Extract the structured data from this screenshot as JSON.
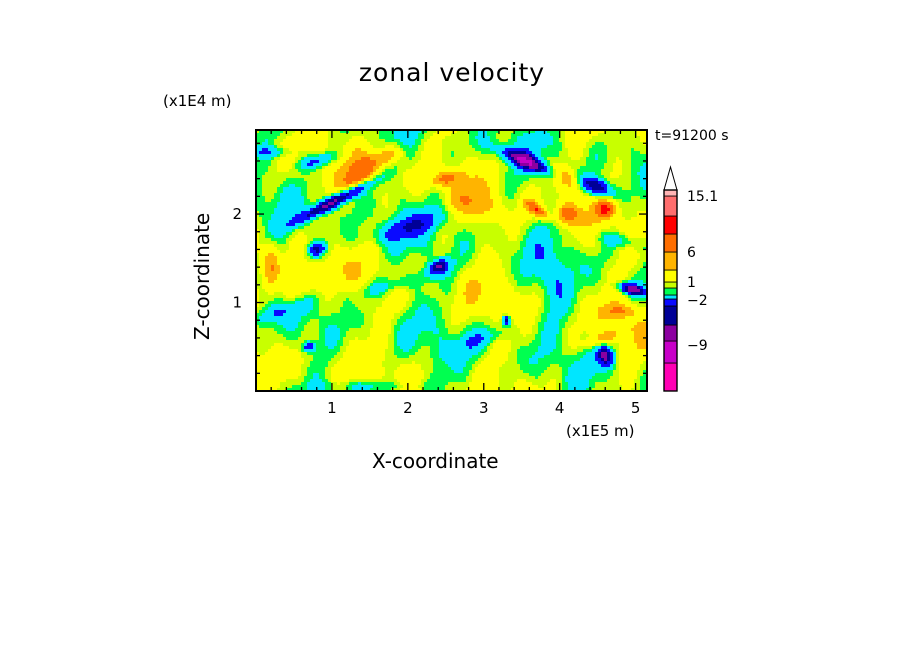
{
  "chart_data": {
    "type": "heatmap",
    "title": "zonal velocity",
    "xlabel": "X-coordinate",
    "ylabel": "Z-coordinate",
    "x_unit": "(x1E5 m)",
    "y_unit": "(x1E4 m)",
    "time_label": "t=91200 s",
    "x_range": [
      0,
      5.15
    ],
    "y_range": [
      0,
      2.95
    ],
    "x_ticks": [
      1,
      2,
      3,
      4,
      5
    ],
    "y_ticks": [
      1,
      2
    ],
    "colorbar": {
      "levels": [
        -14,
        -11.5,
        -9,
        -6,
        -4,
        -2,
        0,
        1,
        2,
        4,
        6,
        9,
        12,
        15.1
      ],
      "labels": [
        "15.1",
        "6",
        "1",
        "−2",
        "−9"
      ],
      "label_values": [
        15.1,
        6,
        1,
        -2,
        -9
      ],
      "colors": [
        "#ff00b4",
        "#c800c8",
        "#8c00a0",
        "#000096",
        "#0a0aff",
        "#00e6ff",
        "#00ff50",
        "#c8ff00",
        "#ffff00",
        "#ffb400",
        "#ff6e00",
        "#ff0000",
        "#ff6e6e",
        "#ffb4b4"
      ],
      "extend": "max"
    }
  }
}
